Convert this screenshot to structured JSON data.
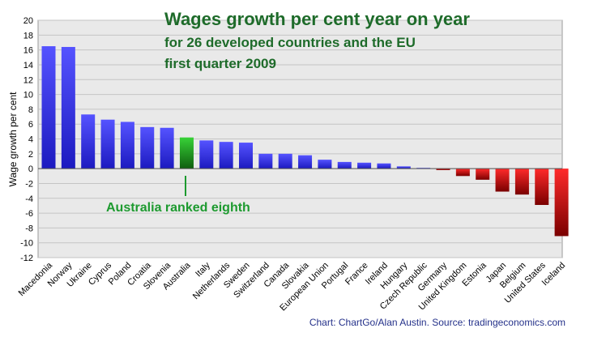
{
  "chart_data": {
    "type": "bar",
    "title": "Wages growth per cent year on year",
    "subtitle_lines": [
      "for 26 developed countries and the EU",
      "first quarter 2009"
    ],
    "ylabel": "Wage growth per cent",
    "xlabel": "",
    "ylim": [
      -12,
      20
    ],
    "yticks": [
      -12,
      -10,
      -8,
      -6,
      -4,
      -2,
      0,
      2,
      4,
      6,
      8,
      10,
      12,
      14,
      16,
      18,
      20
    ],
    "grid": true,
    "legend": "none",
    "categories": [
      "Macedonia",
      "Norway",
      "Ukraine",
      "Cyprus",
      "Poland",
      "Croatia",
      "Slovenia",
      "Australia",
      "Italy",
      "Netherlands",
      "Sweden",
      "Switzerland",
      "Canada",
      "Slovakia",
      "European Union",
      "Portugal",
      "France",
      "Ireland",
      "Hungary",
      "Czech Republic",
      "Germany",
      "United Kingdom",
      "Estonia",
      "Japan",
      "Belgium",
      "United States",
      "Iceland"
    ],
    "values": [
      16.5,
      16.4,
      7.3,
      6.6,
      6.3,
      5.6,
      5.5,
      4.2,
      3.8,
      3.6,
      3.5,
      2.0,
      2.0,
      1.8,
      1.2,
      0.9,
      0.8,
      0.7,
      0.3,
      0.1,
      -0.2,
      -1.0,
      -1.5,
      -3.1,
      -3.5,
      -4.9,
      -9.1
    ],
    "highlight_category": "Australia",
    "annotation": "Australia ranked eighth",
    "source": "Chart: ChartGo/Alan Austin. Source: tradingeconomics.com",
    "colors": {
      "positive_bar": "#3b39f0",
      "highlight_bar": "#1ea81e",
      "negative_bar": "#d11414",
      "title": "#1e6b2a",
      "annotation": "#1d9a2f",
      "source_text": "#24318a",
      "plot_background": "#e9e9e9"
    }
  }
}
